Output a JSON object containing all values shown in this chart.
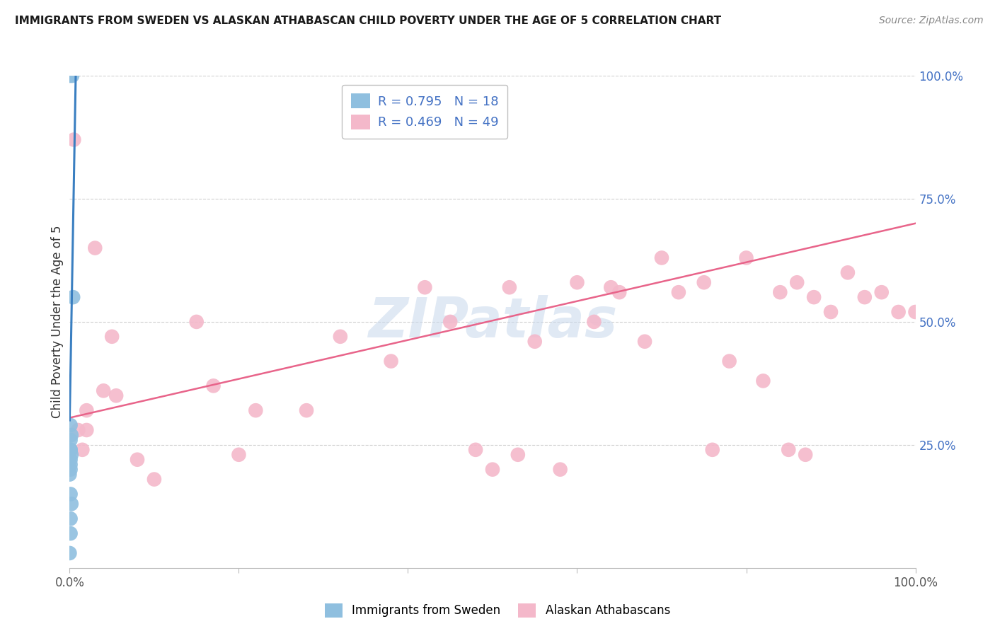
{
  "title": "IMMIGRANTS FROM SWEDEN VS ALASKAN ATHABASCAN CHILD POVERTY UNDER THE AGE OF 5 CORRELATION CHART",
  "source": "Source: ZipAtlas.com",
  "ylabel": "Child Poverty Under the Age of 5",
  "watermark": "ZIPatlas",
  "blue_label": "Immigrants from Sweden",
  "pink_label": "Alaskan Athabascans",
  "blue_R": 0.795,
  "blue_N": 18,
  "pink_R": 0.469,
  "pink_N": 49,
  "blue_scatter_x": [
    0.0,
    0.003,
    0.004,
    0.001,
    0.002,
    0.001,
    0.001,
    0.001,
    0.002,
    0.001,
    0.001,
    0.001,
    0.0,
    0.001,
    0.002,
    0.001,
    0.001,
    0.0
  ],
  "blue_scatter_y": [
    1.0,
    1.0,
    0.55,
    0.29,
    0.27,
    0.26,
    0.24,
    0.24,
    0.23,
    0.22,
    0.21,
    0.2,
    0.19,
    0.15,
    0.13,
    0.1,
    0.07,
    0.03
  ],
  "pink_scatter_x": [
    0.01,
    0.015,
    0.02,
    0.04,
    0.05,
    0.08,
    0.1,
    0.15,
    0.17,
    0.2,
    0.22,
    0.28,
    0.32,
    0.38,
    0.42,
    0.45,
    0.5,
    0.52,
    0.55,
    0.58,
    0.6,
    0.62,
    0.65,
    0.68,
    0.7,
    0.72,
    0.75,
    0.78,
    0.8,
    0.82,
    0.84,
    0.86,
    0.88,
    0.9,
    0.92,
    0.94,
    0.96,
    0.98,
    1.0,
    0.02,
    0.03,
    0.005,
    0.055,
    0.48,
    0.53,
    0.64,
    0.76,
    0.85,
    0.87
  ],
  "pink_scatter_y": [
    0.28,
    0.24,
    0.28,
    0.36,
    0.47,
    0.22,
    0.18,
    0.5,
    0.37,
    0.23,
    0.32,
    0.32,
    0.47,
    0.42,
    0.57,
    0.5,
    0.2,
    0.57,
    0.46,
    0.2,
    0.58,
    0.5,
    0.56,
    0.46,
    0.63,
    0.56,
    0.58,
    0.42,
    0.63,
    0.38,
    0.56,
    0.58,
    0.55,
    0.52,
    0.6,
    0.55,
    0.56,
    0.52,
    0.52,
    0.32,
    0.65,
    0.87,
    0.35,
    0.24,
    0.23,
    0.57,
    0.24,
    0.24,
    0.23
  ],
  "blue_line_x": [
    0.0,
    0.008
  ],
  "blue_line_y": [
    0.3,
    1.08
  ],
  "pink_line_x": [
    0.0,
    1.0
  ],
  "pink_line_y": [
    0.305,
    0.7
  ],
  "xlim": [
    0.0,
    1.0
  ],
  "ylim": [
    0.0,
    1.0
  ],
  "ytick_vals_right": [
    0.25,
    0.5,
    0.75,
    1.0
  ],
  "ytick_labels_right": [
    "25.0%",
    "50.0%",
    "75.0%",
    "100.0%"
  ],
  "background_color": "#ffffff",
  "blue_color": "#8fbfdf",
  "pink_color": "#f4b8ca",
  "blue_line_color": "#3a7fc1",
  "pink_line_color": "#e8648a",
  "grid_color": "#d0d0d0",
  "title_color": "#1a1a1a",
  "right_label_color": "#4472c4",
  "watermark_color": "#c8d8ec",
  "legend_border_color": "#c0c0c0"
}
